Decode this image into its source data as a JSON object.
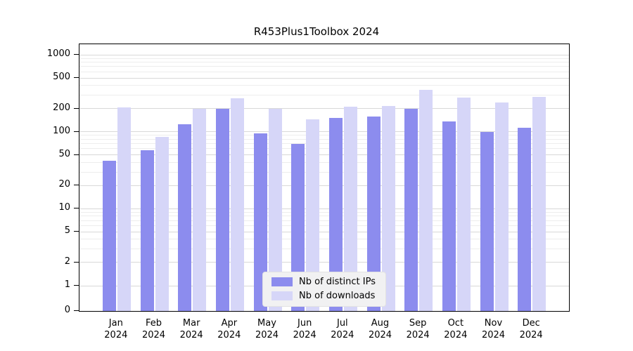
{
  "title": "R453Plus1Toolbox 2024",
  "colors": {
    "bar_distinct_ips": "#8c8cee",
    "bar_downloads": "#d6d6f8",
    "grid_major": "#d8d8d8",
    "grid_minor": "#ededed",
    "axis": "#000000",
    "legend_background": "#f1f1f2"
  },
  "chart_data": {
    "type": "bar",
    "scale": "log",
    "title": "R453Plus1Toolbox 2024",
    "xlabel": "",
    "ylabel": "",
    "ylim": [
      0,
      1000
    ],
    "grid": true,
    "legend_position": "bottom-center",
    "year_label": "2024",
    "categories": [
      "Jan",
      "Feb",
      "Mar",
      "Apr",
      "May",
      "Jun",
      "Jul",
      "Aug",
      "Sep",
      "Oct",
      "Nov",
      "Dec"
    ],
    "yticks": [
      0,
      1,
      2,
      5,
      10,
      20,
      50,
      100,
      200,
      500,
      1000
    ],
    "minor_gridlines": [
      3,
      4,
      6,
      7,
      8,
      9,
      30,
      40,
      60,
      70,
      80,
      90,
      300,
      400,
      600,
      700,
      800,
      900
    ],
    "series": [
      {
        "name": "Nb of distinct IPs",
        "color": "#8c8cee",
        "values": [
          42,
          58,
          125,
          198,
          95,
          70,
          150,
          158,
          200,
          135,
          100,
          113
        ]
      },
      {
        "name": "Nb of downloads",
        "color": "#d6d6f8",
        "values": [
          205,
          85,
          198,
          272,
          197,
          145,
          212,
          218,
          350,
          278,
          238,
          285
        ]
      }
    ]
  }
}
